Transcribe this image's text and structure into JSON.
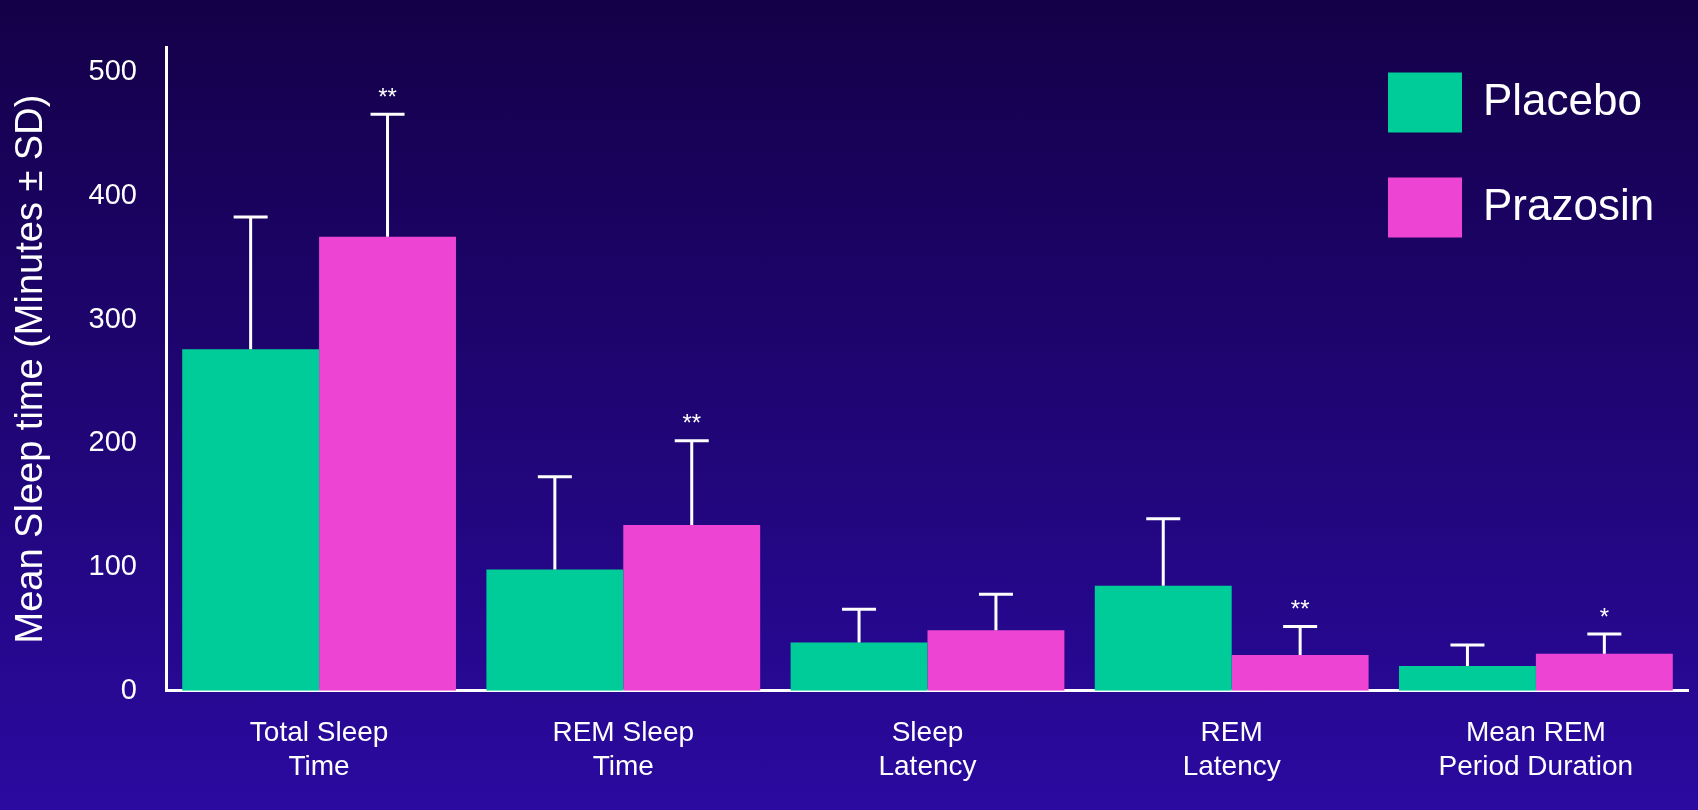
{
  "chart_data": {
    "type": "bar",
    "ylabel": "Mean Sleep time (Minutes ± SD)",
    "categories": [
      "Total Sleep\nTime",
      "REM Sleep\nTime",
      "Sleep\nLatency",
      "REM\nLatency",
      "Mean REM\nPeriod Duration"
    ],
    "series": [
      {
        "name": "Placebo",
        "color": "#00cc99",
        "values": [
          276,
          98,
          39,
          85,
          20
        ],
        "errors": [
          107,
          75,
          27,
          54,
          17
        ]
      },
      {
        "name": "Prazosin",
        "color": "#ee44d4",
        "values": [
          367,
          134,
          49,
          29,
          30
        ],
        "errors": [
          99,
          68,
          29,
          23,
          16
        ]
      }
    ],
    "ylim": [
      0,
      520
    ],
    "yticks": [
      0,
      100,
      200,
      300,
      400,
      500
    ],
    "grid": false,
    "legend": "top right",
    "annotations": [
      "**",
      "**",
      "**",
      "*"
    ]
  }
}
